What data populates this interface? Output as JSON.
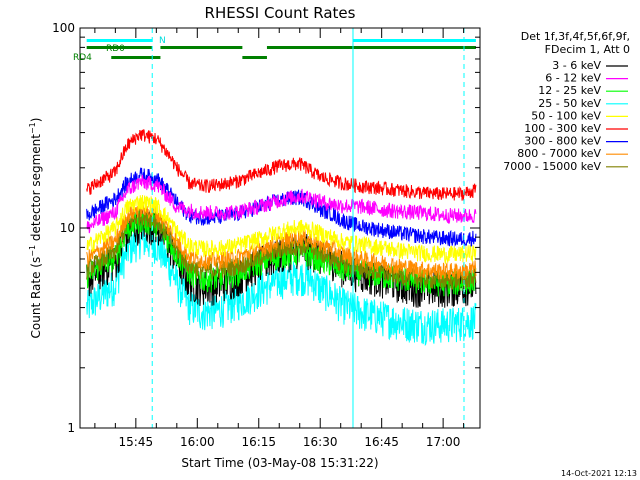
{
  "chart_data": {
    "type": "line",
    "title": "RHESSI Count Rates",
    "xlabel": "Start Time (03-May-08 15:31:22)",
    "ylabel_main": "Count Rate (s",
    "ylabel_sup1": "−1",
    "ylabel_mid": " detector segment",
    "ylabel_sup2": "−1",
    "ylabel_end": ")",
    "yscale": "log",
    "ylim": [
      1,
      100
    ],
    "xlim": [
      "15:31:22",
      "17:09:00"
    ],
    "x_ticks": [
      "15:45",
      "16:00",
      "16:15",
      "16:30",
      "16:45",
      "17:00"
    ],
    "y_ticks": [
      "1",
      "10",
      "100"
    ],
    "legend_header_1": "Det 1f,3f,4f,5f,6f,9f,",
    "legend_header_2": "FDecim 1, Att 0",
    "legend_position": "top-right",
    "timestamp": "14-Oct-2021 12:13",
    "attenuator_labels": {
      "rd0": "RD0",
      "rd4": "RD4",
      "n": "N"
    },
    "x_minutes_after_15_00": [
      33,
      40,
      43,
      46,
      50,
      55,
      58,
      61,
      65,
      70,
      75,
      80,
      85,
      88,
      90,
      93,
      95,
      100,
      105,
      110,
      115,
      120,
      125,
      128
    ],
    "series": [
      {
        "name": "3 - 6 keV",
        "color": "#000000",
        "values": [
          5.5,
          6.8,
          9.5,
          10.5,
          10.3,
          7.0,
          5.4,
          5.1,
          5.2,
          5.7,
          6.6,
          7.3,
          7.9,
          7.6,
          7.2,
          6.9,
          6.4,
          5.9,
          5.6,
          5.2,
          5.0,
          5.0,
          5.1,
          5.2
        ]
      },
      {
        "name": "6 - 12 keV",
        "color": "#ff00ff",
        "values": [
          10.0,
          12.0,
          15.5,
          17.0,
          16.5,
          12.8,
          12.3,
          12.0,
          11.9,
          12.1,
          12.8,
          13.8,
          14.5,
          14.2,
          13.6,
          13.2,
          13.0,
          12.8,
          12.4,
          12.1,
          11.9,
          11.6,
          11.5,
          11.6
        ]
      },
      {
        "name": "12 - 25 keV",
        "color": "#00ff00",
        "values": [
          5.8,
          7.2,
          10.0,
          11.0,
          10.6,
          7.4,
          6.0,
          5.6,
          5.6,
          6.0,
          6.7,
          7.3,
          7.6,
          7.3,
          6.9,
          6.6,
          6.3,
          6.0,
          5.8,
          5.6,
          5.4,
          5.3,
          5.4,
          5.5
        ]
      },
      {
        "name": "25 - 50 keV",
        "color": "#00ffff",
        "values": [
          4.0,
          5.2,
          7.8,
          8.8,
          8.3,
          5.4,
          4.1,
          3.8,
          3.9,
          4.3,
          4.9,
          5.5,
          5.8,
          5.5,
          5.0,
          4.6,
          4.2,
          3.8,
          3.6,
          3.4,
          3.3,
          3.3,
          3.4,
          3.5
        ]
      },
      {
        "name": "50 - 100 keV",
        "color": "#ffff00",
        "values": [
          8.0,
          10.0,
          12.8,
          13.6,
          13.0,
          9.6,
          8.2,
          7.9,
          7.9,
          8.2,
          8.8,
          9.6,
          10.1,
          9.8,
          9.4,
          9.0,
          8.6,
          8.3,
          8.0,
          7.7,
          7.5,
          7.4,
          7.4,
          7.6
        ]
      },
      {
        "name": "100 - 300 keV",
        "color": "#ff0000",
        "values": [
          15.5,
          19.0,
          26.0,
          29.5,
          28.0,
          20.0,
          16.8,
          16.2,
          16.4,
          17.2,
          18.8,
          20.5,
          21.0,
          19.2,
          18.0,
          17.4,
          16.8,
          16.2,
          15.8,
          15.4,
          15.0,
          14.8,
          14.9,
          15.5
        ]
      },
      {
        "name": "300 - 800 keV",
        "color": "#0000ff",
        "values": [
          11.5,
          14.0,
          17.0,
          18.5,
          17.8,
          13.4,
          11.6,
          11.3,
          11.3,
          11.8,
          12.8,
          13.8,
          14.3,
          13.4,
          12.4,
          11.8,
          11.0,
          10.2,
          9.8,
          9.4,
          9.1,
          8.9,
          8.8,
          9.0
        ]
      },
      {
        "name": "800 - 7000 keV",
        "color": "#ff8c00",
        "values": [
          7.0,
          8.6,
          11.6,
          12.6,
          12.0,
          8.6,
          7.2,
          6.9,
          6.9,
          7.2,
          7.8,
          8.6,
          9.0,
          8.7,
          8.3,
          7.9,
          7.5,
          7.0,
          6.7,
          6.4,
          6.2,
          6.1,
          6.1,
          6.3
        ]
      },
      {
        "name": "7000 - 15000 keV",
        "color": "#808000",
        "values": [
          6.2,
          7.6,
          10.6,
          11.6,
          11.0,
          7.8,
          6.5,
          6.2,
          6.2,
          6.5,
          7.1,
          7.8,
          8.2,
          7.9,
          7.5,
          7.1,
          6.7,
          6.3,
          6.0,
          5.8,
          5.6,
          5.5,
          5.5,
          5.7
        ]
      }
    ],
    "intervals_cyan_top": [
      [
        33,
        49
      ],
      [
        98,
        128
      ]
    ],
    "intervals_rd0": [
      [
        33,
        49
      ],
      [
        51,
        71
      ],
      [
        77,
        128
      ]
    ],
    "intervals_rd4": [
      [
        39,
        51
      ],
      [
        71,
        77
      ]
    ],
    "solid_vlines": [
      98
    ],
    "dashed_vlines": [
      49,
      128
    ],
    "grid": false
  }
}
